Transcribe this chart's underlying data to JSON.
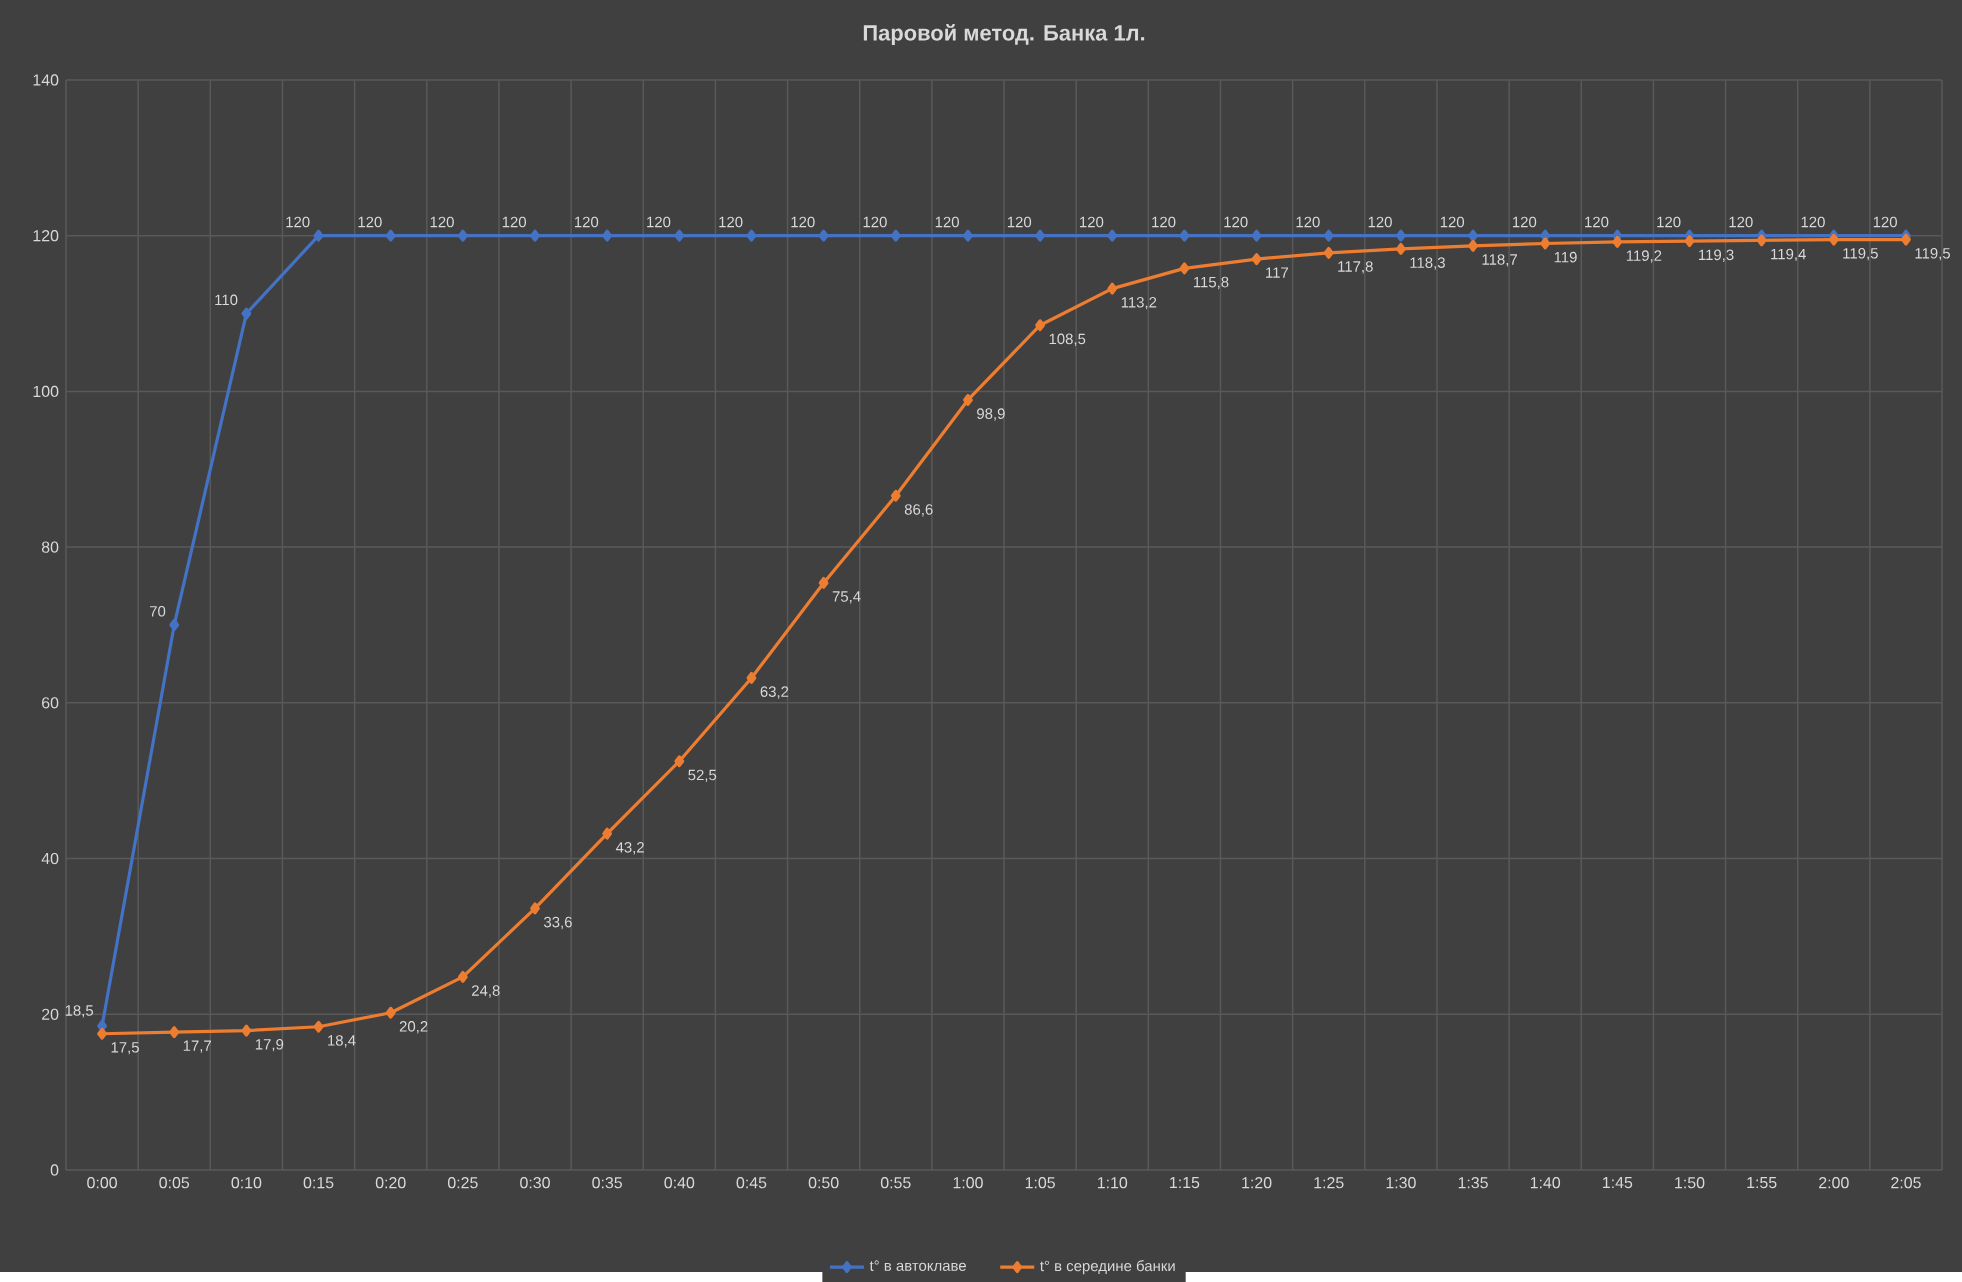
{
  "chart_data": {
    "type": "line",
    "title": "Паровой метод.  Банка 1л.",
    "categories": [
      "0:00",
      "0:05",
      "0:10",
      "0:15",
      "0:20",
      "0:25",
      "0:30",
      "0:35",
      "0:40",
      "0:45",
      "0:50",
      "0:55",
      "1:00",
      "1:05",
      "1:10",
      "1:15",
      "1:20",
      "1:25",
      "1:30",
      "1:35",
      "1:40",
      "1:45",
      "1:50",
      "1:55",
      "2:00",
      "2:05"
    ],
    "series": [
      {
        "name": "t° в автоклаве",
        "color": "#4472c4",
        "values": [
          18.5,
          70,
          110,
          120,
          120,
          120,
          120,
          120,
          120,
          120,
          120,
          120,
          120,
          120,
          120,
          120,
          120,
          120,
          120,
          120,
          120,
          120,
          120,
          120,
          120,
          120
        ],
        "value_labels": [
          "18,5",
          "70",
          "110",
          "120",
          "120",
          "120",
          "120",
          "120",
          "120",
          "120",
          "120",
          "120",
          "120",
          "120",
          "120",
          "120",
          "120",
          "120",
          "120",
          "120",
          "120",
          "120",
          "120",
          "120",
          "120",
          "120"
        ]
      },
      {
        "name": "t° в середине банки",
        "color": "#ed7d31",
        "values": [
          17.5,
          17.7,
          17.9,
          18.4,
          20.2,
          24.8,
          33.6,
          43.2,
          52.5,
          63.2,
          75.4,
          86.6,
          98.9,
          108.5,
          113.2,
          115.8,
          117,
          117.8,
          118.3,
          118.7,
          119,
          119.2,
          119.3,
          119.4,
          119.5,
          119.5
        ],
        "value_labels": [
          "17,5",
          "17,7",
          "17,9",
          "18,4",
          "20,2",
          "24,8",
          "33,6",
          "43,2",
          "52,5",
          "63,2",
          "75,4",
          "86,6",
          "98,9",
          "108,5",
          "113,2",
          "115,8",
          "117",
          "117,8",
          "118,3",
          "118,7",
          "119",
          "119,2",
          "119,3",
          "119,4",
          "119,5",
          "119,5"
        ]
      }
    ],
    "ylim": [
      0,
      140
    ],
    "yticks": [
      0,
      20,
      40,
      60,
      80,
      100,
      120,
      140
    ],
    "grid": true,
    "legend": "bottom",
    "marker": "diamond",
    "line_style": "solid"
  }
}
